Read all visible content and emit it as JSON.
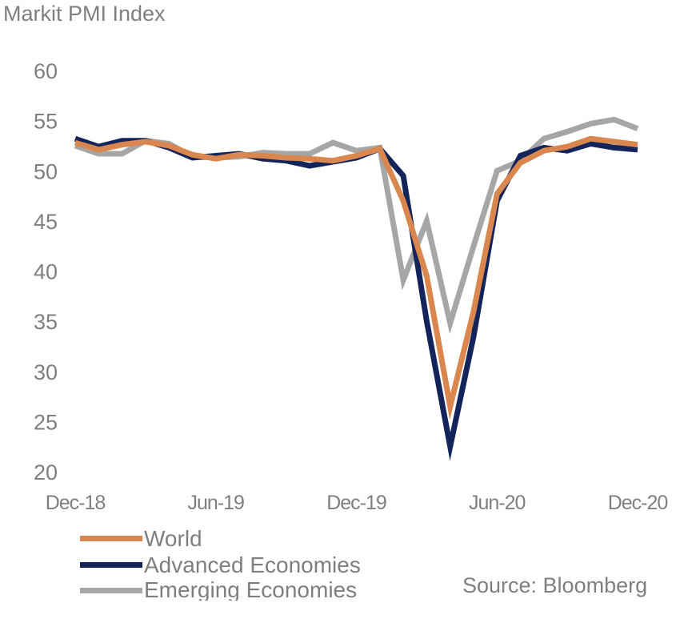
{
  "title": "Markit PMI Index",
  "source": "Source: Bloomberg",
  "chart_data": {
    "type": "line",
    "title": "Markit PMI Index",
    "x": [
      "Dec-18",
      "Jan-19",
      "Feb-19",
      "Mar-19",
      "Apr-19",
      "May-19",
      "Jun-19",
      "Jul-19",
      "Aug-19",
      "Sep-19",
      "Oct-19",
      "Nov-19",
      "Dec-19",
      "Jan-20",
      "Feb-20",
      "Mar-20",
      "Apr-20",
      "May-20",
      "Jun-20",
      "Jul-20",
      "Aug-20",
      "Sep-20",
      "Oct-20",
      "Nov-20",
      "Dec-20"
    ],
    "x_tick_labels": [
      "Dec-18",
      "Jun-19",
      "Dec-19",
      "Jun-20",
      "Dec-20"
    ],
    "y_ticks": [
      20,
      25,
      30,
      35,
      40,
      45,
      50,
      55,
      60
    ],
    "ylim": [
      20,
      60
    ],
    "grid": false,
    "legend_position": "bottom-left",
    "series": [
      {
        "name": "World",
        "color": "#d9864f",
        "values": [
          52.8,
          52.1,
          52.6,
          52.9,
          52.5,
          51.6,
          51.2,
          51.6,
          51.5,
          51.3,
          51.2,
          51.0,
          51.5,
          52.2,
          47.0,
          39.5,
          26.5,
          36.0,
          47.7,
          50.8,
          52.0,
          52.4,
          53.2,
          52.9,
          52.6
        ]
      },
      {
        "name": "Advanced Economies",
        "color": "#13245a",
        "values": [
          53.2,
          52.4,
          53.0,
          53.0,
          52.3,
          51.3,
          51.5,
          51.7,
          51.2,
          51.0,
          50.5,
          50.9,
          51.3,
          52.2,
          49.5,
          35.0,
          22.5,
          33.5,
          47.0,
          51.5,
          52.3,
          52.0,
          52.7,
          52.3,
          52.1
        ]
      },
      {
        "name": "Emerging Economies",
        "color": "#a6a6a6",
        "values": [
          52.5,
          51.7,
          51.7,
          53.0,
          52.7,
          51.4,
          51.3,
          51.4,
          51.8,
          51.7,
          51.7,
          52.8,
          52.0,
          52.3,
          39.1,
          45.0,
          34.8,
          42.5,
          50.0,
          51.0,
          53.2,
          53.9,
          54.7,
          55.1,
          54.2
        ]
      }
    ]
  }
}
